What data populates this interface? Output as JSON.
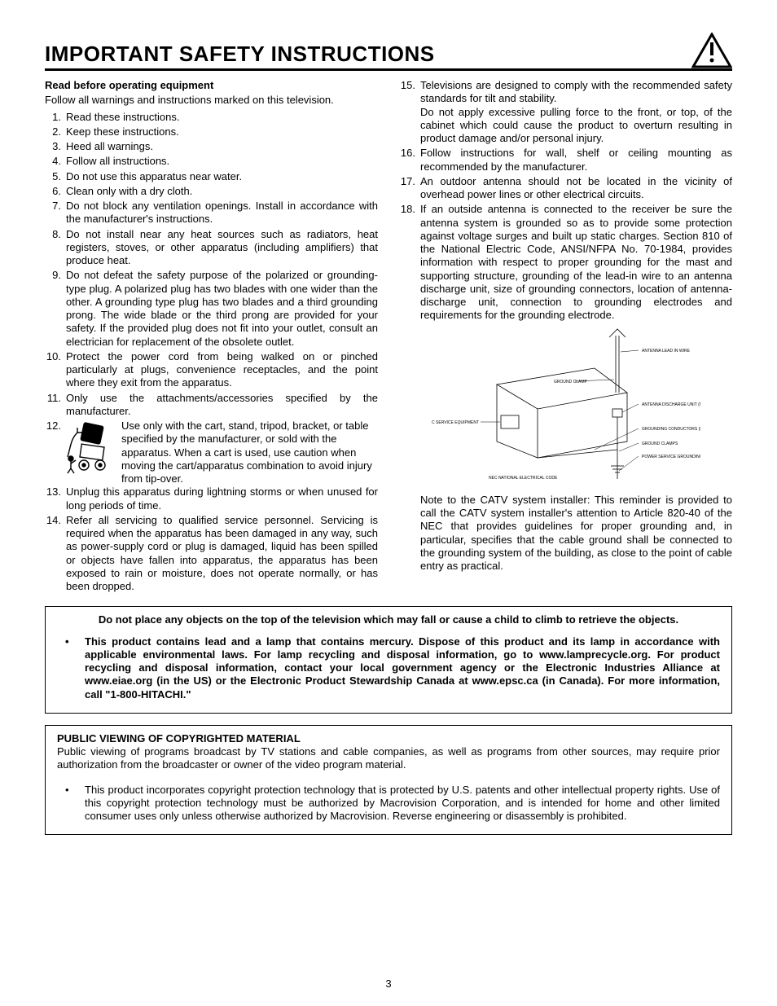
{
  "title": "IMPORTANT SAFETY INSTRUCTIONS",
  "subtitle": "Read before operating equipment",
  "intro": "Follow all warnings and instructions marked on this television.",
  "left_items": [
    {
      "n": "1.",
      "t": "Read these instructions."
    },
    {
      "n": "2.",
      "t": "Keep these instructions."
    },
    {
      "n": "3.",
      "t": "Heed all warnings."
    },
    {
      "n": "4.",
      "t": "Follow all instructions."
    },
    {
      "n": "5.",
      "t": "Do not use this apparatus near water."
    },
    {
      "n": "6.",
      "t": "Clean only with a dry cloth."
    },
    {
      "n": "7.",
      "t": "Do not block any ventilation openings.  Install in accordance with the manufacturer's instructions."
    },
    {
      "n": "8.",
      "t": "Do not install near any heat sources such as radiators, heat registers, stoves, or other apparatus (including amplifiers) that produce heat."
    },
    {
      "n": "9.",
      "t": "Do not defeat the safety purpose of the polarized or grounding-type plug.  A polarized plug has two blades with one wider than the other.  A grounding type plug has two blades and a third grounding prong.  The wide blade or the third prong are provided for your safety.  If the provided plug does not fit into your outlet, consult an electrician for replacement of the obsolete outlet."
    },
    {
      "n": "10.",
      "t": "Protect the power cord from being walked on or pinched particularly at plugs, convenience receptacles, and the point where they exit from the apparatus."
    },
    {
      "n": "11.",
      "t": "Only use the attachments/accessories specified by the manufacturer."
    }
  ],
  "item12": {
    "n": "12.",
    "t": "Use only with the cart, stand, tripod, bracket, or table specified by the manufacturer, or sold with the apparatus.  When a cart is used, use caution when moving the cart/apparatus combination to avoid injury from tip-over."
  },
  "left_items_b": [
    {
      "n": "13.",
      "t": "Unplug this apparatus during lightning storms or when unused for long periods of time."
    },
    {
      "n": "14.",
      "t": "Refer all servicing to qualified service personnel.  Servicing is required when the apparatus has been damaged in any way, such as power-supply cord or plug is damaged, liquid has been spilled or objects have fallen into apparatus, the apparatus has been exposed to rain or moisture, does not operate normally, or has been dropped."
    }
  ],
  "right_items": [
    {
      "n": "15.",
      "t": "Televisions are designed to comply with the recommended safety standards for tilt and stability.",
      "t2": "Do not apply excessive pulling force to the front, or top, of the cabinet which could cause the product to overturn resulting in product damage and/or personal injury."
    },
    {
      "n": "16.",
      "t": "Follow instructions for wall, shelf or ceiling mounting as recommended by the manufacturer."
    },
    {
      "n": "17.",
      "t": "An outdoor antenna should not be located in the vicinity of overhead power lines or other electrical circuits."
    },
    {
      "n": "18.",
      "t": "If an outside antenna is connected to the receiver be sure the antenna system is grounded so as to provide some protection against voltage surges and built up static charges.  Section 810 of the National Electric Code, ANSI/NFPA No. 70-1984, provides information with respect to proper grounding for the mast and supporting structure, grounding of the lead-in wire to an antenna discharge unit, size of grounding connectors, location of antenna-discharge unit, connection to grounding electrodes and requirements for the grounding electrode."
    }
  ],
  "diagram_labels": {
    "antenna_lead": "ANTENNA LEAD IN WIRE",
    "ground_clamp": "GROUND CLAMP",
    "discharge": "ANTENNA DISCHARGE UNIT (NEC SECTION 810-20)",
    "equipment": "ELECTRIC SERVICE EQUIPMENT",
    "conductors": "GROUNDING CONDUCTORS (NEC SECTION 810-21)",
    "ground_clamps2": "GROUND CLAMPS",
    "power": "POWER SERVICE GROUNDING ELECTRODE SYSTEM (NEC ART 250, PART H)",
    "source": "NEC NATIONAL ELECTRICAL CODE"
  },
  "catv_note": "Note to the CATV system installer:  This reminder is provided to call the CATV system installer's attention to Article 820-40 of the NEC that provides guidelines for proper grounding and, in particular, specifies that the cable ground shall be connected to the grounding system of the building, as close to the point of cable entry as practical.",
  "box1": "Do not place any objects on the top of the television which may fall or cause a child to climb to retrieve the objects.",
  "box1b": "This product contains lead and a lamp that contains mercury.  Dispose of this product and its lamp in accordance with applicable environmental laws.  For lamp recycling and disposal information, go to www.lamprecycle.org.  For product recycling and disposal information, contact your local government agency or the Electronic Industries Alliance at www.eiae.org (in the US) or the Electronic Product Stewardship Canada at www.epsc.ca (in Canada).  For more information, call \"1-800-HITACHI.\"",
  "box2_title": "PUBLIC VIEWING OF COPYRIGHTED MATERIAL",
  "box2_text": "Public viewing of programs broadcast by TV stations and cable companies, as well as programs from other sources, may require prior authorization from the broadcaster or owner of the video program material.",
  "box2_bullet": "This product incorporates copyright protection technology that is protected by U.S. patents and other intellectual property rights.  Use of this copyright protection technology must be authorized by Macrovision Corporation, and is intended for home and other limited consumer uses only unless otherwise authorized by Macrovision.  Reverse engineering or disassembly is prohibited.",
  "page_number": "3",
  "colors": {
    "text": "#000000",
    "bg": "#ffffff",
    "rule": "#000000"
  }
}
